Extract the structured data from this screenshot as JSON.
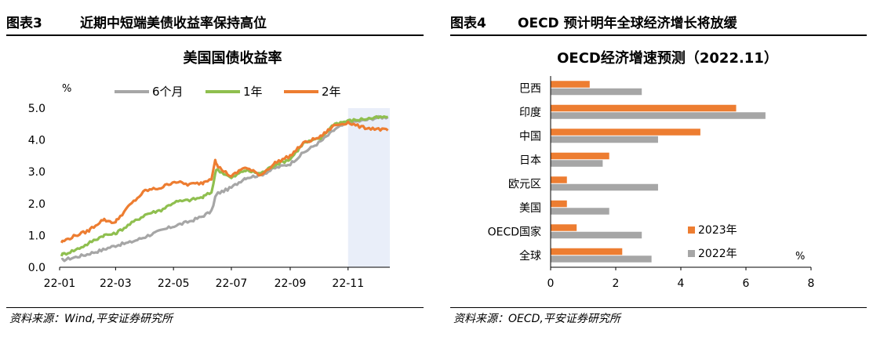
{
  "left": {
    "figure_no": "图表3",
    "figure_title": "近期中短端美债收益率保持高位",
    "source": "资料来源：Wind,平安证券研究所"
  },
  "right": {
    "figure_no": "图表4",
    "figure_title": "OECD 预计明年全球经济增长将放缓",
    "source": "资料来源：OECD,平安证券研究所"
  },
  "chart_data": [
    {
      "type": "line",
      "title": "美国国债收益率",
      "ylabel": "%",
      "ylim": [
        0,
        5
      ],
      "yticks": [
        "0.0",
        "1.0",
        "2.0",
        "3.0",
        "4.0",
        "5.0"
      ],
      "xlim": [
        "2022-01-01",
        "2022-12-15"
      ],
      "xticks": [
        {
          "date": "2022-01-01",
          "label": "22-01"
        },
        {
          "date": "2022-03-01",
          "label": "22-03"
        },
        {
          "date": "2022-05-01",
          "label": "22-05"
        },
        {
          "date": "2022-07-01",
          "label": "22-07"
        },
        {
          "date": "2022-09-01",
          "label": "22-09"
        },
        {
          "date": "2022-11-01",
          "label": "22-11"
        }
      ],
      "highlight_range": [
        "2022-11-01",
        "2022-12-15"
      ],
      "grid": false,
      "legend_position": "top",
      "series": [
        {
          "name": "6个月",
          "color": "#a6a6a6",
          "points": [
            [
              "2022-01-03",
              0.21
            ],
            [
              "2022-01-18",
              0.32
            ],
            [
              "2022-02-01",
              0.42
            ],
            [
              "2022-02-16",
              0.55
            ],
            [
              "2022-03-01",
              0.68
            ],
            [
              "2022-03-16",
              0.78
            ],
            [
              "2022-04-01",
              0.95
            ],
            [
              "2022-04-18",
              1.15
            ],
            [
              "2022-05-02",
              1.3
            ],
            [
              "2022-05-16",
              1.42
            ],
            [
              "2022-06-01",
              1.6
            ],
            [
              "2022-06-10",
              1.75
            ],
            [
              "2022-06-14",
              2.2
            ],
            [
              "2022-06-16",
              2.3
            ],
            [
              "2022-07-01",
              2.5
            ],
            [
              "2022-07-15",
              2.8
            ],
            [
              "2022-08-01",
              2.9
            ],
            [
              "2022-08-15",
              3.1
            ],
            [
              "2022-09-01",
              3.25
            ],
            [
              "2022-09-15",
              3.6
            ],
            [
              "2022-10-03",
              3.95
            ],
            [
              "2022-10-17",
              4.3
            ],
            [
              "2022-11-01",
              4.55
            ],
            [
              "2022-11-15",
              4.6
            ],
            [
              "2022-12-01",
              4.7
            ],
            [
              "2022-12-13",
              4.72
            ]
          ]
        },
        {
          "name": "1年",
          "color": "#8fbf4f",
          "points": [
            [
              "2022-01-03",
              0.38
            ],
            [
              "2022-01-18",
              0.55
            ],
            [
              "2022-02-01",
              0.75
            ],
            [
              "2022-02-16",
              1.0
            ],
            [
              "2022-03-01",
              1.05
            ],
            [
              "2022-03-16",
              1.35
            ],
            [
              "2022-04-01",
              1.65
            ],
            [
              "2022-04-18",
              1.8
            ],
            [
              "2022-05-02",
              2.05
            ],
            [
              "2022-05-16",
              2.1
            ],
            [
              "2022-06-01",
              2.2
            ],
            [
              "2022-06-10",
              2.35
            ],
            [
              "2022-06-14",
              2.95
            ],
            [
              "2022-06-16",
              3.1
            ],
            [
              "2022-07-01",
              2.8
            ],
            [
              "2022-07-15",
              3.05
            ],
            [
              "2022-08-01",
              2.95
            ],
            [
              "2022-08-15",
              3.2
            ],
            [
              "2022-09-01",
              3.4
            ],
            [
              "2022-09-15",
              3.9
            ],
            [
              "2022-10-03",
              4.05
            ],
            [
              "2022-10-17",
              4.5
            ],
            [
              "2022-11-01",
              4.6
            ],
            [
              "2022-11-15",
              4.65
            ],
            [
              "2022-12-01",
              4.7
            ],
            [
              "2022-12-13",
              4.72
            ]
          ]
        },
        {
          "name": "2年",
          "color": "#ed7d31",
          "points": [
            [
              "2022-01-03",
              0.78
            ],
            [
              "2022-01-18",
              1.0
            ],
            [
              "2022-02-01",
              1.15
            ],
            [
              "2022-02-16",
              1.5
            ],
            [
              "2022-03-01",
              1.4
            ],
            [
              "2022-03-16",
              1.95
            ],
            [
              "2022-04-01",
              2.4
            ],
            [
              "2022-04-18",
              2.5
            ],
            [
              "2022-05-02",
              2.7
            ],
            [
              "2022-05-16",
              2.6
            ],
            [
              "2022-06-01",
              2.65
            ],
            [
              "2022-06-10",
              2.8
            ],
            [
              "2022-06-14",
              3.4
            ],
            [
              "2022-06-16",
              3.2
            ],
            [
              "2022-07-01",
              2.85
            ],
            [
              "2022-07-15",
              3.15
            ],
            [
              "2022-08-01",
              2.9
            ],
            [
              "2022-08-15",
              3.25
            ],
            [
              "2022-09-01",
              3.5
            ],
            [
              "2022-09-15",
              3.9
            ],
            [
              "2022-10-03",
              4.1
            ],
            [
              "2022-10-17",
              4.45
            ],
            [
              "2022-11-01",
              4.55
            ],
            [
              "2022-11-15",
              4.4
            ],
            [
              "2022-12-01",
              4.35
            ],
            [
              "2022-12-13",
              4.3
            ]
          ]
        }
      ]
    },
    {
      "type": "bar",
      "orientation": "horizontal",
      "title": "OECD经济增速预测（2022.11）",
      "unit_label": "%",
      "categories": [
        "巴西",
        "印度",
        "中国",
        "日本",
        "欧元区",
        "美国",
        "OECD国家",
        "全球"
      ],
      "xlim": [
        0,
        8
      ],
      "xticks": [
        "0",
        "2",
        "4",
        "6",
        "8"
      ],
      "legend_position": "bottom-right",
      "series": [
        {
          "name": "2023年",
          "color": "#ed7d31",
          "values": [
            1.2,
            5.7,
            4.6,
            1.8,
            0.5,
            0.5,
            0.8,
            2.2
          ]
        },
        {
          "name": "2022年",
          "color": "#a6a6a6",
          "values": [
            2.8,
            6.6,
            3.3,
            1.6,
            3.3,
            1.8,
            2.8,
            3.1
          ]
        }
      ]
    }
  ]
}
